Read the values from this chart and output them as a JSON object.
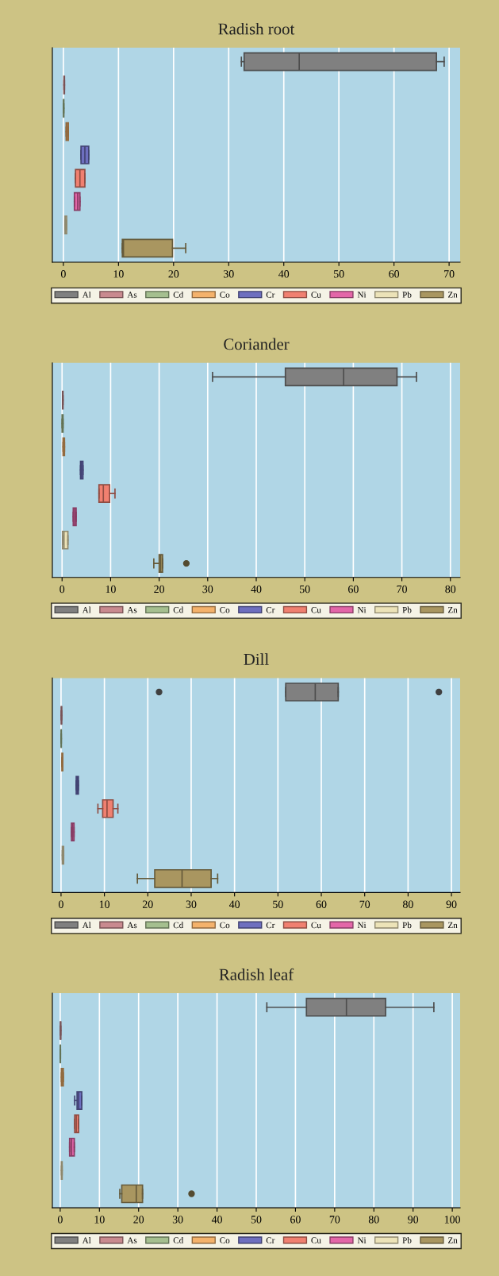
{
  "chart_data": [
    {
      "type": "box",
      "orientation": "horizontal",
      "title": "Radish root",
      "categories": [
        null,
        null,
        null,
        null,
        null,
        null,
        null,
        null,
        null
      ],
      "series": [
        {
          "name": "Al",
          "color": "#808080",
          "boxes": [
            {
              "low": 32.3,
              "q1": 32.8,
              "median": 42.8,
              "q3": 67.7,
              "high": 69.1
            },
            null,
            null,
            null,
            null,
            null,
            null,
            null,
            null
          ]
        },
        {
          "name": "As",
          "color": "#c98a8f",
          "boxes": [
            null,
            {
              "low": 0.1,
              "q1": 0.1,
              "median": 0.15,
              "q3": 0.2,
              "high": 0.2
            },
            null,
            null,
            null,
            null,
            null,
            null,
            null
          ]
        },
        {
          "name": "Cd",
          "color": "#a5bf8f",
          "boxes": [
            null,
            null,
            {
              "low": 0.03,
              "q1": 0.03,
              "median": 0.05,
              "q3": 0.08,
              "high": 0.08
            },
            null,
            null,
            null,
            null,
            null,
            null
          ]
        },
        {
          "name": "Co",
          "color": "#f4b26b",
          "boxes": [
            null,
            null,
            null,
            {
              "low": 0.5,
              "q1": 0.5,
              "median": 0.7,
              "q3": 0.9,
              "high": 0.9
            },
            null,
            null,
            null,
            null,
            null
          ]
        },
        {
          "name": "Cr",
          "color": "#6e6fbf",
          "boxes": [
            null,
            null,
            null,
            null,
            {
              "low": 3.2,
              "q1": 3.2,
              "median": 3.9,
              "q3": 4.6,
              "high": 4.6
            },
            null,
            null,
            null,
            null
          ]
        },
        {
          "name": "Cu",
          "color": "#f08070",
          "boxes": [
            null,
            null,
            null,
            null,
            null,
            {
              "low": 2.2,
              "q1": 2.2,
              "median": 3.0,
              "q3": 3.9,
              "high": 3.9
            },
            null,
            null,
            null
          ]
        },
        {
          "name": "Ni",
          "color": "#e366a8",
          "boxes": [
            null,
            null,
            null,
            null,
            null,
            null,
            {
              "low": 2.0,
              "q1": 2.0,
              "median": 2.6,
              "q3": 3.0,
              "high": 3.0
            },
            null,
            null
          ]
        },
        {
          "name": "Pb",
          "color": "#ece3b8",
          "boxes": [
            null,
            null,
            null,
            null,
            null,
            null,
            null,
            {
              "low": 0.3,
              "q1": 0.3,
              "median": 0.4,
              "q3": 0.6,
              "high": 0.6
            },
            null
          ]
        },
        {
          "name": "Zn",
          "color": "#a99660",
          "boxes": [
            null,
            null,
            null,
            null,
            null,
            null,
            null,
            null,
            {
              "low": 10.7,
              "q1": 10.7,
              "median": 10.9,
              "q3": 19.8,
              "high": 22.2
            }
          ]
        }
      ],
      "xlim": [
        -2,
        72
      ],
      "xticks": [
        0,
        10,
        20,
        30,
        40,
        50,
        60,
        70
      ],
      "grid": "x",
      "legend": "bottom",
      "tick_labels": "x"
    },
    {
      "type": "box",
      "orientation": "horizontal",
      "title": "Coriander",
      "categories": [
        null,
        null,
        null,
        null,
        null,
        null,
        null,
        null,
        null
      ],
      "series": [
        {
          "name": "Al",
          "color": "#808080",
          "boxes": [
            {
              "low": 31,
              "q1": 46,
              "median": 58,
              "q3": 69,
              "high": 73
            },
            null,
            null,
            null,
            null,
            null,
            null,
            null,
            null
          ]
        },
        {
          "name": "As",
          "color": "#c98a8f",
          "boxes": [
            null,
            {
              "low": 0.1,
              "q1": 0.1,
              "median": 0.15,
              "q3": 0.2,
              "high": 0.2
            },
            null,
            null,
            null,
            null,
            null,
            null,
            null
          ]
        },
        {
          "name": "Cd",
          "color": "#a5bf8f",
          "boxes": [
            null,
            null,
            {
              "low": 0.0,
              "q1": 0.0,
              "median": 0.1,
              "q3": 0.2,
              "high": 0.2
            },
            null,
            null,
            null,
            null,
            null,
            null
          ]
        },
        {
          "name": "Co",
          "color": "#f4b26b",
          "boxes": [
            null,
            null,
            null,
            {
              "low": 0.2,
              "q1": 0.2,
              "median": 0.35,
              "q3": 0.5,
              "high": 0.5
            },
            null,
            null,
            null,
            null,
            null
          ]
        },
        {
          "name": "Cr",
          "color": "#6e6fbf",
          "boxes": [
            null,
            null,
            null,
            null,
            {
              "low": 3.8,
              "q1": 3.8,
              "median": 4.0,
              "q3": 4.3,
              "high": 4.3
            },
            null,
            null,
            null,
            null
          ]
        },
        {
          "name": "Cu",
          "color": "#f08070",
          "boxes": [
            null,
            null,
            null,
            null,
            null,
            {
              "low": 7.6,
              "q1": 7.6,
              "median": 8.5,
              "q3": 9.8,
              "high": 10.9
            },
            null,
            null,
            null
          ]
        },
        {
          "name": "Ni",
          "color": "#e366a8",
          "boxes": [
            null,
            null,
            null,
            null,
            null,
            null,
            {
              "low": 2.3,
              "q1": 2.3,
              "median": 2.6,
              "q3": 2.9,
              "high": 2.9
            },
            null,
            null
          ]
        },
        {
          "name": "Pb",
          "color": "#ece3b8",
          "boxes": [
            null,
            null,
            null,
            null,
            null,
            null,
            null,
            {
              "low": 0.1,
              "q1": 0.1,
              "median": 0.4,
              "q3": 1.2,
              "high": 1.2
            },
            null
          ]
        },
        {
          "name": "Zn",
          "color": "#a99660",
          "boxes": [
            null,
            null,
            null,
            null,
            null,
            null,
            null,
            null,
            {
              "low": 18.9,
              "q1": 20.0,
              "median": 20.3,
              "q3": 20.7,
              "high": 20.7,
              "outliers": [
                25.6
              ]
            }
          ]
        }
      ],
      "xlim": [
        -2,
        82
      ],
      "xticks": [
        0,
        10,
        20,
        30,
        40,
        50,
        60,
        70,
        80
      ],
      "grid": "x",
      "legend": "bottom",
      "tick_labels": "x"
    },
    {
      "type": "box",
      "orientation": "horizontal",
      "title": "Dill",
      "categories": [
        null,
        null,
        null,
        null,
        null,
        null,
        null,
        null,
        null
      ],
      "series": [
        {
          "name": "Al",
          "color": "#808080",
          "boxes": [
            {
              "low": 51.8,
              "q1": 51.8,
              "median": 58.6,
              "q3": 63.9,
              "high": 63.9,
              "outliers": [
                22.6,
                87.1
              ]
            },
            null,
            null,
            null,
            null,
            null,
            null,
            null,
            null
          ]
        },
        {
          "name": "As",
          "color": "#c98a8f",
          "boxes": [
            null,
            {
              "low": 0.05,
              "q1": 0.05,
              "median": 0.1,
              "q3": 0.15,
              "high": 0.15
            },
            null,
            null,
            null,
            null,
            null,
            null,
            null
          ]
        },
        {
          "name": "Cd",
          "color": "#a5bf8f",
          "boxes": [
            null,
            null,
            {
              "low": 0.03,
              "q1": 0.03,
              "median": 0.05,
              "q3": 0.07,
              "high": 0.07
            },
            null,
            null,
            null,
            null,
            null,
            null
          ]
        },
        {
          "name": "Co",
          "color": "#f4b26b",
          "boxes": [
            null,
            null,
            null,
            {
              "low": 0.2,
              "q1": 0.2,
              "median": 0.3,
              "q3": 0.4,
              "high": 0.4
            },
            null,
            null,
            null,
            null,
            null
          ]
        },
        {
          "name": "Cr",
          "color": "#6e6fbf",
          "boxes": [
            null,
            null,
            null,
            null,
            {
              "low": 3.5,
              "q1": 3.5,
              "median": 3.8,
              "q3": 4.0,
              "high": 4.0
            },
            null,
            null,
            null,
            null
          ]
        },
        {
          "name": "Cu",
          "color": "#f08070",
          "boxes": [
            null,
            null,
            null,
            null,
            null,
            {
              "low": 8.5,
              "q1": 9.6,
              "median": 10.6,
              "q3": 12.0,
              "high": 13.1
            },
            null,
            null,
            null
          ]
        },
        {
          "name": "Ni",
          "color": "#e366a8",
          "boxes": [
            null,
            null,
            null,
            null,
            null,
            null,
            {
              "low": 2.4,
              "q1": 2.4,
              "median": 2.7,
              "q3": 3.0,
              "high": 3.0
            },
            null,
            null
          ]
        },
        {
          "name": "Pb",
          "color": "#ece3b8",
          "boxes": [
            null,
            null,
            null,
            null,
            null,
            null,
            null,
            {
              "low": 0.3,
              "q1": 0.3,
              "median": 0.4,
              "q3": 0.6,
              "high": 0.6
            },
            null
          ]
        },
        {
          "name": "Zn",
          "color": "#a99660",
          "boxes": [
            null,
            null,
            null,
            null,
            null,
            null,
            null,
            null,
            {
              "low": 17.6,
              "q1": 21.6,
              "median": 27.9,
              "q3": 34.6,
              "high": 36.1
            }
          ]
        }
      ],
      "xlim": [
        -2,
        92
      ],
      "xticks": [
        0,
        10,
        20,
        30,
        40,
        50,
        60,
        70,
        80,
        90
      ],
      "grid": "x",
      "legend": "bottom",
      "tick_labels": "x"
    },
    {
      "type": "box",
      "orientation": "horizontal",
      "title": "Radish leaf",
      "categories": [
        null,
        null,
        null,
        null,
        null,
        null,
        null,
        null,
        null
      ],
      "series": [
        {
          "name": "Al",
          "color": "#808080",
          "boxes": [
            {
              "low": 52.7,
              "q1": 62.8,
              "median": 73.0,
              "q3": 83.0,
              "high": 95.3
            },
            null,
            null,
            null,
            null,
            null,
            null,
            null,
            null
          ]
        },
        {
          "name": "As",
          "color": "#c98a8f",
          "boxes": [
            null,
            {
              "low": 0.05,
              "q1": 0.05,
              "median": 0.1,
              "q3": 0.15,
              "high": 0.15
            },
            null,
            null,
            null,
            null,
            null,
            null,
            null
          ]
        },
        {
          "name": "Cd",
          "color": "#a5bf8f",
          "boxes": [
            null,
            null,
            {
              "low": 0.03,
              "q1": 0.03,
              "median": 0.05,
              "q3": 0.07,
              "high": 0.07
            },
            null,
            null,
            null,
            null,
            null,
            null
          ]
        },
        {
          "name": "Co",
          "color": "#f4b26b",
          "boxes": [
            null,
            null,
            null,
            {
              "low": 0.3,
              "q1": 0.3,
              "median": 0.5,
              "q3": 0.8,
              "high": 0.8
            },
            null,
            null,
            null,
            null,
            null
          ]
        },
        {
          "name": "Cr",
          "color": "#6e6fbf",
          "boxes": [
            null,
            null,
            null,
            null,
            {
              "low": 3.7,
              "q1": 4.3,
              "median": 4.7,
              "q3": 5.5,
              "high": 5.5
            },
            null,
            null,
            null,
            null
          ]
        },
        {
          "name": "Cu",
          "color": "#f08070",
          "boxes": [
            null,
            null,
            null,
            null,
            null,
            {
              "low": 3.7,
              "q1": 3.7,
              "median": 4.1,
              "q3": 4.7,
              "high": 4.7
            },
            null,
            null,
            null
          ]
        },
        {
          "name": "Ni",
          "color": "#e366a8",
          "boxes": [
            null,
            null,
            null,
            null,
            null,
            null,
            {
              "low": 2.4,
              "q1": 2.4,
              "median": 2.9,
              "q3": 3.6,
              "high": 3.6
            },
            null,
            null
          ]
        },
        {
          "name": "Pb",
          "color": "#ece3b8",
          "boxes": [
            null,
            null,
            null,
            null,
            null,
            null,
            null,
            {
              "low": 0.3,
              "q1": 0.3,
              "median": 0.4,
              "q3": 0.5,
              "high": 0.5
            },
            null
          ]
        },
        {
          "name": "Zn",
          "color": "#a99660",
          "boxes": [
            null,
            null,
            null,
            null,
            null,
            null,
            null,
            null,
            {
              "low": 15.2,
              "q1": 15.7,
              "median": 19.4,
              "q3": 21.0,
              "high": 21.0,
              "outliers": [
                33.5
              ]
            }
          ]
        }
      ],
      "xlim": [
        -2,
        102
      ],
      "xticks": [
        0,
        10,
        20,
        30,
        40,
        50,
        60,
        70,
        80,
        90,
        100
      ],
      "grid": "x",
      "legend": "bottom",
      "tick_labels": "x"
    }
  ]
}
